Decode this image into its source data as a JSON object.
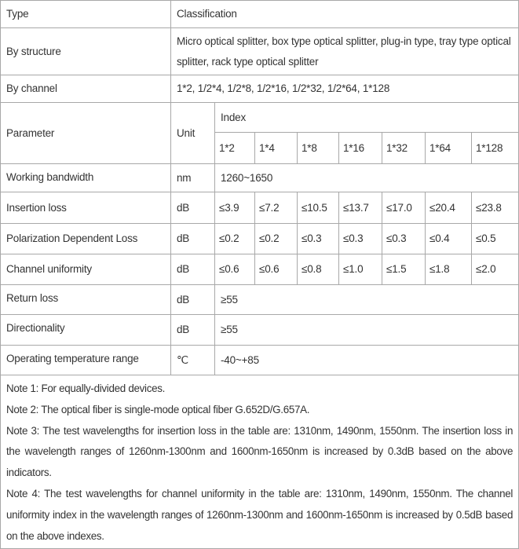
{
  "header": {
    "type": "Type",
    "classification": "Classification"
  },
  "structure": {
    "label": "By structure",
    "value": "Micro optical splitter, box type optical splitter, plug-in type, tray type optical splitter, rack type optical splitter"
  },
  "channel": {
    "label": "By channel",
    "value": "1*2, 1/2*4, 1/2*8, 1/2*16, 1/2*32, 1/2*64, 1*128"
  },
  "param_header": {
    "parameter": "Parameter",
    "unit": "Unit",
    "index": "Index",
    "columns": [
      "1*2",
      "1*4",
      "1*8",
      "1*16",
      "1*32",
      "1*64",
      "1*128"
    ]
  },
  "rows": [
    {
      "name": "Working bandwidth",
      "unit": "nm",
      "value": "1260~1650"
    },
    {
      "name": "Insertion loss",
      "unit": "dB",
      "values": [
        "≤3.9",
        "≤7.2",
        "≤10.5",
        "≤13.7",
        "≤17.0",
        "≤20.4",
        "≤23.8"
      ]
    },
    {
      "name": "Polarization Dependent Loss",
      "unit": "dB",
      "values": [
        "≤0.2",
        "≤0.2",
        "≤0.3",
        "≤0.3",
        "≤0.3",
        "≤0.4",
        "≤0.5"
      ]
    },
    {
      "name": "Channel uniformity",
      "unit": "dB",
      "values": [
        "≤0.6",
        "≤0.6",
        "≤0.8",
        "≤1.0",
        "≤1.5",
        "≤1.8",
        "≤2.0"
      ]
    },
    {
      "name": "Return loss",
      "unit": "dB",
      "value": "≥55"
    },
    {
      "name": "Directionality",
      "unit": "dB",
      "value": "≥55"
    },
    {
      "name": "Operating temperature range",
      "unit": "℃",
      "value": "-40~+85"
    }
  ],
  "notes": [
    "Note 1: For equally-divided devices.",
    "Note 2: The optical fiber is single-mode optical fiber G.652D/G.657A.",
    "Note 3: The test wavelengths for insertion loss in the table are: 1310nm, 1490nm, 1550nm. The insertion loss in the wavelength ranges of 1260nm-1300nm and 1600nm-1650nm is increased by 0.3dB based on the above indicators.",
    "Note 4: The test wavelengths for channel uniformity in the table are: 1310nm, 1490nm, 1550nm. The channel uniformity index in the wavelength ranges of 1260nm-1300nm and 1600nm-1650nm is increased by 0.5dB based on the above indexes."
  ]
}
